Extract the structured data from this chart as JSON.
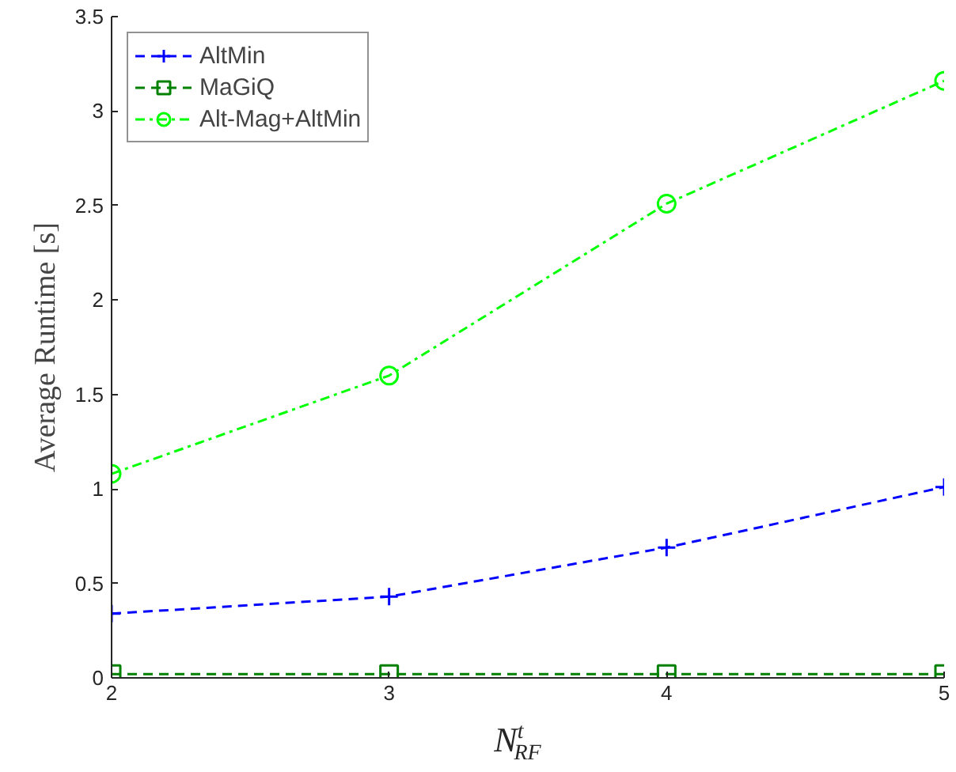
{
  "chart_data": {
    "type": "line",
    "xlabel": "N$^{t}$$_{RF}$",
    "ylabel": "Average Runtime [s]",
    "x": [
      2,
      3,
      4,
      5
    ],
    "series": [
      {
        "name": "AltMin",
        "color": "#0000ff",
        "values": [
          0.34,
          0.43,
          0.69,
          1.01
        ],
        "marker": "cross",
        "line_style": "dashed"
      },
      {
        "name": "MaGiQ",
        "color": "#008000",
        "values": [
          0.02,
          0.02,
          0.02,
          0.02
        ],
        "marker": "square",
        "line_style": "dashed"
      },
      {
        "name": "Alt-Mag+AltMin",
        "color": "#00ff00",
        "values": [
          1.08,
          1.6,
          2.51,
          3.16
        ],
        "marker": "circle",
        "line_style": "dashdot"
      }
    ],
    "xlim": [
      2,
      5
    ],
    "xticks": [
      2,
      3,
      4,
      5
    ],
    "ylim": [
      0,
      3.5
    ],
    "yticks": [
      0,
      0.5,
      1,
      1.5,
      2,
      2.5,
      3,
      3.5
    ],
    "grid": false,
    "legend": "top left"
  }
}
